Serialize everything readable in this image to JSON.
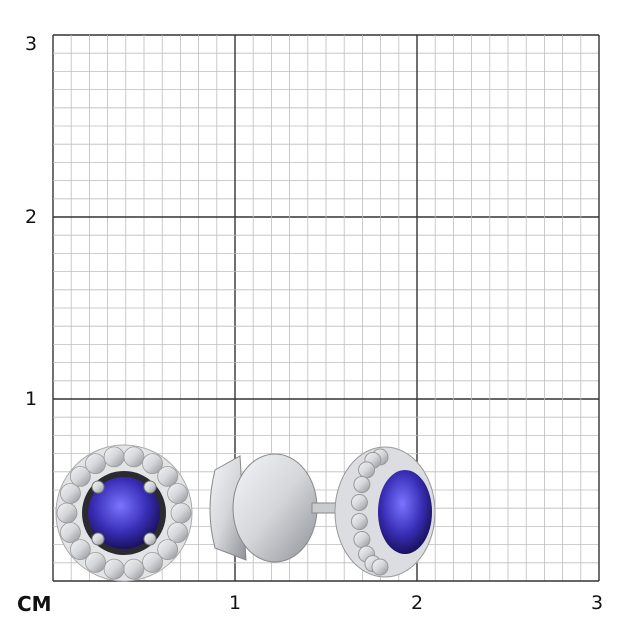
{
  "scale": {
    "unit_label": "CM",
    "y_labels": [
      "3",
      "2",
      "1"
    ],
    "x_labels": [
      "1",
      "2",
      "3"
    ],
    "range_cm": [
      0,
      3
    ],
    "subdivisions_per_cm": 10
  },
  "product": {
    "items": [
      "stud-earring-front",
      "stud-earring-side"
    ],
    "colors": {
      "gemstone": "#3a2fb8",
      "metal": "#d4d6da",
      "grid_minor": "#bdbdbd",
      "grid_major": "#333333"
    }
  }
}
